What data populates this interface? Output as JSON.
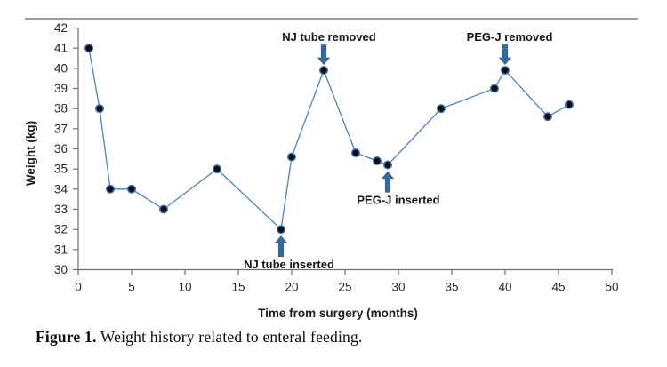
{
  "caption": {
    "prefix": "Figure 1.",
    "text": " Weight history related to enteral feeding."
  },
  "decor": {
    "top_rule_color": "#9b9b9b"
  },
  "chart_data": {
    "type": "line",
    "title": "",
    "xlabel": "Time from surgery (months)",
    "ylabel": "Weight (kg)",
    "xlim": [
      0,
      50
    ],
    "ylim": [
      30,
      42
    ],
    "x_ticks": [
      0,
      5,
      10,
      15,
      20,
      25,
      30,
      35,
      40,
      45,
      50
    ],
    "y_ticks": [
      30,
      31,
      32,
      33,
      34,
      35,
      36,
      37,
      38,
      39,
      40,
      41,
      42
    ],
    "grid": false,
    "legend": false,
    "series": [
      {
        "points": [
          [
            1,
            41
          ],
          [
            2,
            38
          ],
          [
            3,
            34
          ],
          [
            5,
            34
          ],
          [
            8,
            33
          ],
          [
            13,
            35
          ],
          [
            19,
            32
          ],
          [
            20,
            35.6
          ],
          [
            23,
            39.9
          ],
          [
            26,
            35.8
          ],
          [
            28,
            35.4
          ],
          [
            29,
            35.2
          ],
          [
            34,
            38
          ],
          [
            39,
            39
          ],
          [
            40,
            39.9
          ],
          [
            44,
            37.6
          ],
          [
            46,
            38.2
          ]
        ],
        "line_color": "#4f81bd",
        "marker_fill": "#0d0d16",
        "marker_stroke": "#4576ad"
      }
    ],
    "annotations": [
      {
        "label": "NJ tube inserted",
        "x": 19,
        "y": 32,
        "direction": "up",
        "label_dx": 9
      },
      {
        "label": "NJ tube removed",
        "x": 23,
        "y": 39.9,
        "direction": "down",
        "label_dx": 6
      },
      {
        "label": "PEG-J inserted",
        "x": 29,
        "y": 35.2,
        "direction": "up",
        "label_dx": 12
      },
      {
        "label": "PEG-J removed",
        "x": 40,
        "y": 39.9,
        "direction": "down",
        "label_dx": 5
      }
    ],
    "arrow_color": "#38679e",
    "axis_color": "#6e6e6e",
    "tick_text_color": "#262626"
  }
}
